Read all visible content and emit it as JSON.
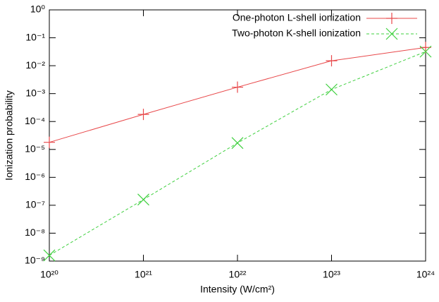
{
  "chart_data": {
    "type": "line",
    "x_label": "Intensity (W/cm²)",
    "y_label": "Ionization probability",
    "x": [
      1e+20,
      1e+21,
      1e+22,
      1e+23,
      1e+24
    ],
    "xscale": "log",
    "yscale": "log",
    "xlim": [
      1e+20,
      1e+24
    ],
    "ylim": [
      1e-09,
      1
    ],
    "xticks": [
      {
        "value": 1e+20,
        "label": "10²⁰"
      },
      {
        "value": 1e+21,
        "label": "10²¹"
      },
      {
        "value": 1e+22,
        "label": "10²²"
      },
      {
        "value": 1e+23,
        "label": "10²³"
      },
      {
        "value": 1e+24,
        "label": "10²⁴"
      }
    ],
    "yticks": [
      {
        "value": 1e-09,
        "label": "10⁻⁹"
      },
      {
        "value": 1e-08,
        "label": "10⁻⁸"
      },
      {
        "value": 1e-07,
        "label": "10⁻⁷"
      },
      {
        "value": 1e-06,
        "label": "10⁻⁶"
      },
      {
        "value": 1e-05,
        "label": "10⁻⁵"
      },
      {
        "value": 0.0001,
        "label": "10⁻⁴"
      },
      {
        "value": 0.001,
        "label": "10⁻³"
      },
      {
        "value": 0.01,
        "label": "10⁻²"
      },
      {
        "value": 0.1,
        "label": "10⁻¹"
      },
      {
        "value": 1,
        "label": "10⁰"
      }
    ],
    "grid": false,
    "legend": "top-right",
    "series": [
      {
        "name": "One-photon L-shell ionization",
        "color": "#e8484a",
        "marker": "plus",
        "dash": "solid",
        "values": [
          1.8e-05,
          0.00018,
          0.0017,
          0.015,
          0.045
        ]
      },
      {
        "name": "Two-photon K-shell ionization",
        "color": "#3fd03f",
        "marker": "cross",
        "dash": "dashed",
        "values": [
          1.6e-09,
          1.6e-07,
          1.7e-05,
          0.0014,
          0.032
        ]
      }
    ]
  }
}
